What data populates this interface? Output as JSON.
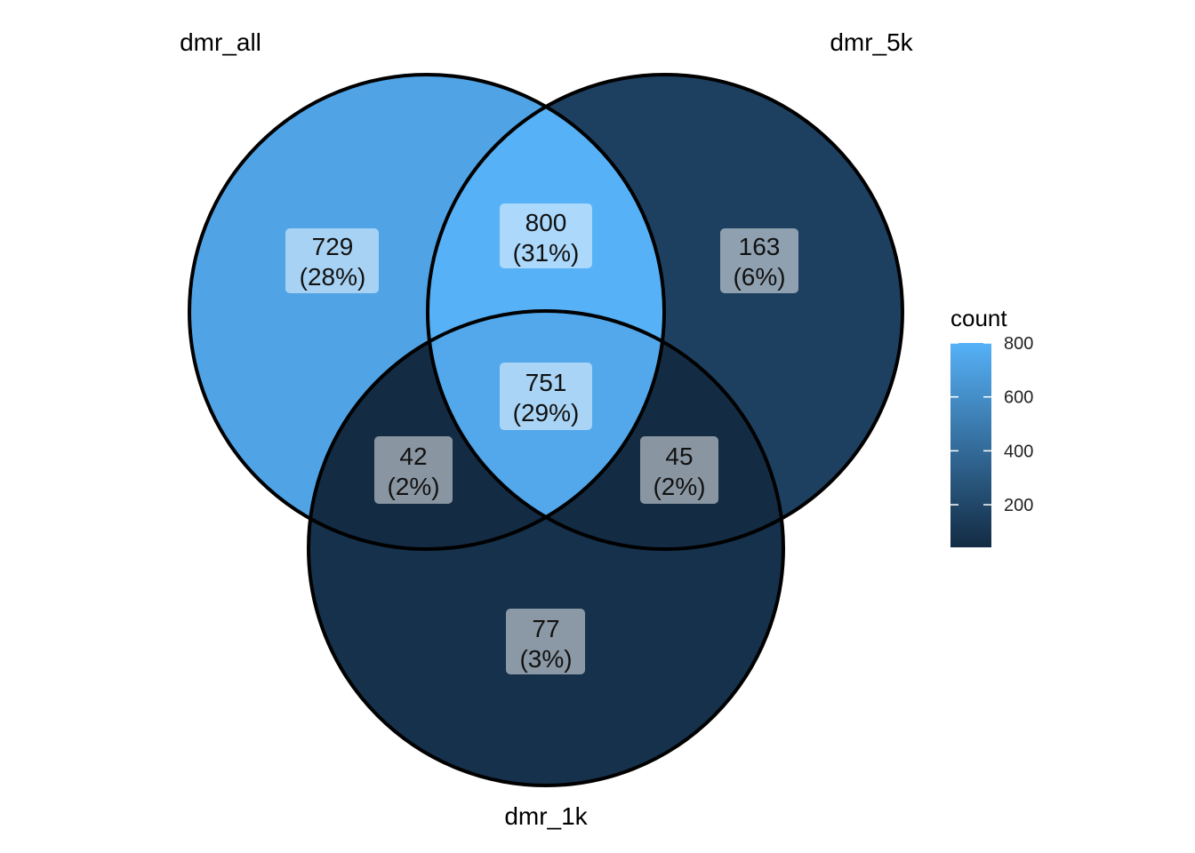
{
  "diagram": {
    "type": "venn",
    "sets": [
      {
        "id": "all",
        "label": "dmr_all"
      },
      {
        "id": "five",
        "label": "dmr_5k"
      },
      {
        "id": "one",
        "label": "dmr_1k"
      }
    ],
    "regions": [
      {
        "id": "all_only",
        "sets": [
          "all"
        ],
        "count": 729,
        "percent": "(28%)"
      },
      {
        "id": "five_only",
        "sets": [
          "five"
        ],
        "count": 163,
        "percent": "(6%)"
      },
      {
        "id": "one_only",
        "sets": [
          "one"
        ],
        "count": 77,
        "percent": "(3%)"
      },
      {
        "id": "all_five",
        "sets": [
          "all",
          "five"
        ],
        "count": 800,
        "percent": "(31%)"
      },
      {
        "id": "all_one",
        "sets": [
          "all",
          "one"
        ],
        "count": 42,
        "percent": "(2%)"
      },
      {
        "id": "five_one",
        "sets": [
          "five",
          "one"
        ],
        "count": 45,
        "percent": "(2%)"
      },
      {
        "id": "all_five_one",
        "sets": [
          "all",
          "five",
          "one"
        ],
        "count": 751,
        "percent": "(29%)"
      }
    ]
  },
  "legend": {
    "title": "count",
    "ticks": [
      200,
      400,
      600,
      800
    ],
    "min": 42,
    "max": 800,
    "low_color": "#132B43",
    "high_color": "#56B1F7"
  }
}
